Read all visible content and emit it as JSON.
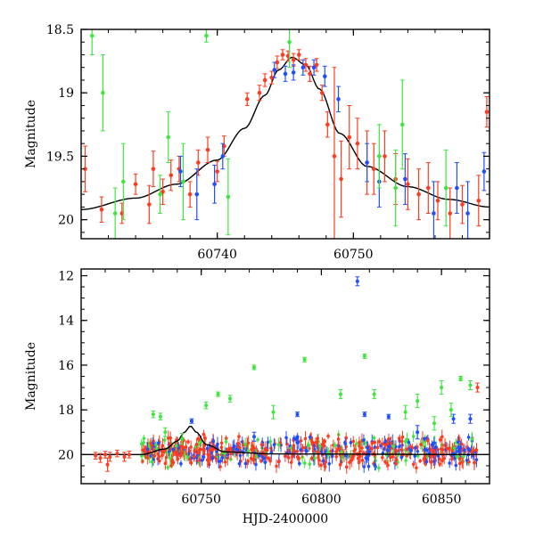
{
  "chart_data": [
    {
      "type": "scatter",
      "panel": "top",
      "xlabel": "",
      "ylabel": "Magnitude",
      "xlim": [
        60730,
        60760
      ],
      "ylim": [
        20.15,
        18.5
      ],
      "y_inverted": true,
      "x_ticks": [
        60740,
        60750
      ],
      "y_ticks": [
        18.5,
        19,
        19.5,
        20
      ],
      "model_curve": {
        "x": [
          60730,
          60734,
          60737,
          60740,
          60742,
          60743.5,
          60744.5,
          60745.5,
          60746.5,
          60747.5,
          60749,
          60751,
          60754,
          60757,
          60760
        ],
        "y": [
          19.92,
          19.83,
          19.72,
          19.53,
          19.28,
          19.02,
          18.82,
          18.72,
          18.78,
          18.97,
          19.32,
          19.58,
          19.74,
          19.84,
          19.9
        ]
      },
      "series": [
        {
          "color": "#ff3b1f",
          "x": [
            60730.3,
            60731.5,
            60733.0,
            60734.0,
            60735.0,
            60735.3,
            60736.0,
            60736.6,
            60737.2,
            60738.0,
            60738.6,
            60739.3,
            60740.0,
            60740.5,
            60742.2,
            60743.1,
            60743.5,
            60744.0,
            60744.4,
            60744.8,
            60745.2,
            60745.6,
            60746.0,
            60746.5,
            60746.8,
            60747.3,
            60747.7,
            60748.1,
            60748.6,
            60749.1,
            60749.7,
            60750.3,
            60751.0,
            60751.5,
            60752.3,
            60753.1,
            60754.0,
            60754.8,
            60755.5,
            60756.2,
            60757.1,
            60758.0,
            60759.2,
            60759.8
          ],
          "y": [
            19.6,
            19.92,
            19.95,
            19.72,
            19.88,
            19.6,
            19.78,
            19.65,
            19.6,
            19.8,
            19.55,
            19.45,
            19.62,
            19.42,
            19.05,
            19.0,
            18.9,
            18.88,
            18.76,
            18.7,
            18.71,
            18.74,
            18.7,
            18.78,
            18.85,
            18.78,
            19.0,
            19.25,
            19.5,
            19.68,
            19.35,
            19.4,
            19.55,
            19.6,
            19.5,
            19.68,
            19.72,
            19.8,
            19.75,
            19.85,
            19.95,
            19.88,
            19.85,
            19.15
          ],
          "err": [
            0.18,
            0.1,
            0.08,
            0.08,
            0.15,
            0.14,
            0.1,
            0.12,
            0.1,
            0.1,
            0.1,
            0.1,
            0.08,
            0.08,
            0.05,
            0.06,
            0.05,
            0.05,
            0.05,
            0.04,
            0.04,
            0.05,
            0.04,
            0.05,
            0.06,
            0.05,
            0.06,
            0.1,
            0.7,
            0.3,
            0.25,
            0.2,
            0.25,
            0.2,
            0.2,
            0.2,
            0.2,
            0.2,
            0.2,
            0.15,
            0.2,
            0.15,
            0.2,
            0.12
          ]
        },
        {
          "color": "#1f4fff",
          "x": [
            60737.3,
            60738.5,
            60739.8,
            60740.4,
            60744.2,
            60745.0,
            60745.6,
            60746.3,
            60747.1,
            60747.9,
            60748.9,
            60751.0,
            60751.9,
            60753.8,
            60755.9,
            60757.6,
            60758.4,
            60759.6
          ],
          "y": [
            19.62,
            19.8,
            19.72,
            19.5,
            18.82,
            18.85,
            18.84,
            18.8,
            18.8,
            18.87,
            19.05,
            19.55,
            19.7,
            19.68,
            19.95,
            19.75,
            19.95,
            19.62
          ],
          "err": [
            0.12,
            0.2,
            0.15,
            0.1,
            0.06,
            0.06,
            0.06,
            0.06,
            0.06,
            0.08,
            0.1,
            0.15,
            0.2,
            0.2,
            0.25,
            0.2,
            0.25,
            0.15
          ]
        },
        {
          "color": "#3fe63f",
          "x": [
            60730.8,
            60731.6,
            60732.5,
            60733.1,
            60735.8,
            60736.4,
            60737.5,
            60739.2,
            60740.8,
            60745.3,
            60751.9,
            60753.1,
            60753.6,
            60756.8
          ],
          "y": [
            18.55,
            19.0,
            19.95,
            19.7,
            19.8,
            19.35,
            19.7,
            18.55,
            19.82,
            18.6,
            19.5,
            19.75,
            19.25,
            19.75
          ],
          "err": [
            0.15,
            0.3,
            0.2,
            0.3,
            0.15,
            0.2,
            0.3,
            0.05,
            0.3,
            0.2,
            0.25,
            0.3,
            0.35,
            0.3
          ]
        }
      ]
    },
    {
      "type": "scatter",
      "panel": "bottom",
      "xlabel": "HJD-2400000",
      "ylabel": "Magnitude",
      "xlim": [
        60700,
        60870
      ],
      "ylim": [
        21.3,
        11.7
      ],
      "y_inverted": true,
      "x_ticks": [
        60750,
        60800,
        60850
      ],
      "y_ticks": [
        12,
        14,
        16,
        18,
        20
      ],
      "model_curve": {
        "x": [
          60700,
          60725,
          60735,
          60740,
          60743,
          60745.5,
          60748,
          60752,
          60760,
          60780,
          60870
        ],
        "y": [
          20.0,
          20.0,
          19.75,
          19.4,
          19.0,
          18.72,
          19.0,
          19.55,
          19.88,
          19.97,
          20.0
        ]
      },
      "band": {
        "x_start": [
          60725,
          60755
        ],
        "x_end": [
          60755,
          60865
        ],
        "y_center": 19.85,
        "y_spread": 0.55
      },
      "series": [
        {
          "color": "#ff3b1f",
          "x": [
            60706,
            60708,
            60710,
            60711,
            60712,
            60715,
            60718,
            60720,
            60865
          ],
          "y": [
            20.05,
            20.15,
            20.0,
            20.45,
            20.1,
            19.95,
            20.1,
            20.0,
            17.0
          ],
          "err": [
            0.15,
            0.2,
            0.15,
            0.3,
            0.2,
            0.15,
            0.2,
            0.15,
            0.2
          ]
        },
        {
          "color": "#1f4fff",
          "x": [
            60746,
            60772,
            60790,
            60815,
            60818,
            60828,
            60840,
            60855,
            60862
          ],
          "y": [
            18.5,
            19.2,
            18.2,
            12.25,
            18.2,
            18.3,
            19.0,
            18.4,
            18.4
          ],
          "err": [
            0.1,
            0.2,
            0.1,
            0.2,
            0.1,
            0.1,
            0.3,
            0.2,
            0.2
          ]
        },
        {
          "color": "#3fe63f",
          "x": [
            60730,
            60733,
            60735,
            60742,
            60752,
            60757,
            60762,
            60772,
            60780,
            60793,
            60808,
            60818,
            60822,
            60835,
            60840,
            60847,
            60850,
            60854,
            60858,
            60862
          ],
          "y": [
            18.2,
            18.3,
            19.0,
            19.3,
            17.8,
            17.3,
            17.5,
            16.1,
            18.1,
            15.75,
            17.3,
            15.6,
            17.3,
            18.1,
            17.6,
            18.6,
            17.0,
            18.0,
            16.6,
            16.9
          ],
          "err": [
            0.15,
            0.15,
            0.2,
            0.25,
            0.15,
            0.1,
            0.15,
            0.1,
            0.3,
            0.1,
            0.2,
            0.1,
            0.2,
            0.3,
            0.3,
            0.3,
            0.3,
            0.3,
            0.1,
            0.2
          ]
        }
      ]
    }
  ]
}
